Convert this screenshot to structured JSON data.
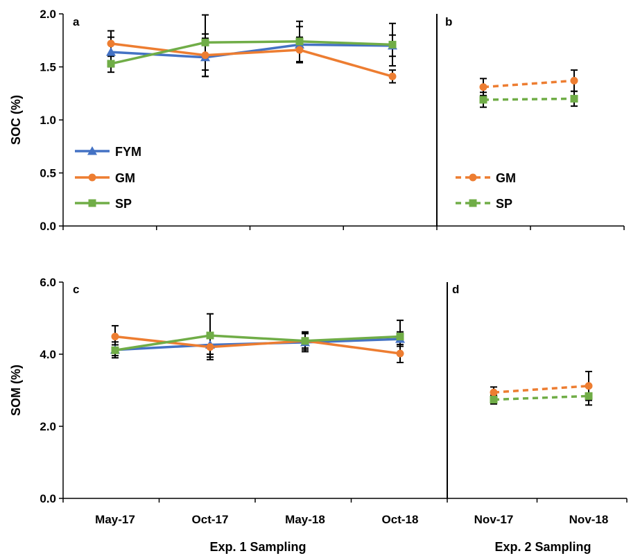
{
  "chart_data": [
    {
      "panel": "a",
      "type": "line",
      "ylabel": "SOC (%)",
      "ylim": [
        0,
        2
      ],
      "yticks": [
        "0.0",
        "0.5",
        "1.0",
        "1.5",
        "2.0"
      ],
      "categories": [
        "May-17",
        "Oct-17",
        "May-18",
        "Oct-18"
      ],
      "series": [
        {
          "name": "FYM",
          "color": "#4472c4",
          "marker": "triangle",
          "dashed": false,
          "values": [
            1.64,
            1.59,
            1.71,
            1.7
          ],
          "error": [
            0.14,
            0.18,
            0.17,
            0.1
          ]
        },
        {
          "name": "GM",
          "color": "#ed7d31",
          "marker": "circle",
          "dashed": false,
          "values": [
            1.72,
            1.61,
            1.66,
            1.41
          ],
          "error": [
            0.12,
            0.2,
            0.12,
            0.06
          ]
        },
        {
          "name": "SP",
          "color": "#70ad47",
          "marker": "square",
          "dashed": false,
          "values": [
            1.53,
            1.73,
            1.74,
            1.71
          ],
          "error": [
            0.08,
            0.26,
            0.19,
            0.2
          ]
        }
      ],
      "legend_position": "bottom-left",
      "grid": false
    },
    {
      "panel": "b",
      "type": "line",
      "ylim": [
        0,
        2
      ],
      "categories": [
        "Nov-17",
        "Nov-18"
      ],
      "series": [
        {
          "name": "GM",
          "color": "#ed7d31",
          "marker": "circle",
          "dashed": true,
          "values": [
            1.31,
            1.37
          ],
          "error": [
            0.08,
            0.1
          ]
        },
        {
          "name": "SP",
          "color": "#70ad47",
          "marker": "square",
          "dashed": true,
          "values": [
            1.19,
            1.2
          ],
          "error": [
            0.07,
            0.07
          ]
        }
      ],
      "legend_position": "bottom-left",
      "grid": false
    },
    {
      "panel": "c",
      "type": "line",
      "ylabel": "SOM (%)",
      "ylim": [
        0,
        6
      ],
      "yticks": [
        "0.0",
        "2.0",
        "4.0",
        "6.0"
      ],
      "categories": [
        "May-17",
        "Oct-17",
        "May-18",
        "Oct-18"
      ],
      "series": [
        {
          "name": "FYM",
          "color": "#4472c4",
          "marker": "triangle",
          "dashed": false,
          "values": [
            4.12,
            4.26,
            4.33,
            4.42
          ],
          "error": [
            0.22,
            0.26,
            0.26,
            0.2
          ]
        },
        {
          "name": "GM",
          "color": "#ed7d31",
          "marker": "circle",
          "dashed": false,
          "values": [
            4.49,
            4.2,
            4.37,
            4.02
          ],
          "error": [
            0.3,
            0.35,
            0.2,
            0.25
          ]
        },
        {
          "name": "SP",
          "color": "#70ad47",
          "marker": "square",
          "dashed": false,
          "values": [
            4.11,
            4.52,
            4.37,
            4.49
          ],
          "error": [
            0.15,
            0.6,
            0.25,
            0.45
          ]
        }
      ],
      "grid": false
    },
    {
      "panel": "d",
      "type": "line",
      "ylim": [
        0,
        6
      ],
      "categories": [
        "Nov-17",
        "Nov-18"
      ],
      "series": [
        {
          "name": "GM",
          "color": "#ed7d31",
          "marker": "circle",
          "dashed": true,
          "values": [
            2.94,
            3.12
          ],
          "error": [
            0.15,
            0.4
          ]
        },
        {
          "name": "SP",
          "color": "#70ad47",
          "marker": "square",
          "dashed": true,
          "values": [
            2.74,
            2.84
          ],
          "error": [
            0.12,
            0.25
          ]
        }
      ],
      "grid": false
    }
  ],
  "x_categories_exp1": [
    "May-17",
    "Oct-17",
    "May-18",
    "Oct-18"
  ],
  "x_categories_exp2": [
    "Nov-17",
    "Nov-18"
  ],
  "exp1_label": "Exp. 1 Sampling",
  "exp2_label": "Exp. 2 Sampling",
  "legend_a": [
    "FYM",
    "GM",
    "SP"
  ],
  "legend_b": [
    "GM",
    "SP"
  ],
  "panel_letters": [
    "a",
    "b",
    "c",
    "d"
  ]
}
